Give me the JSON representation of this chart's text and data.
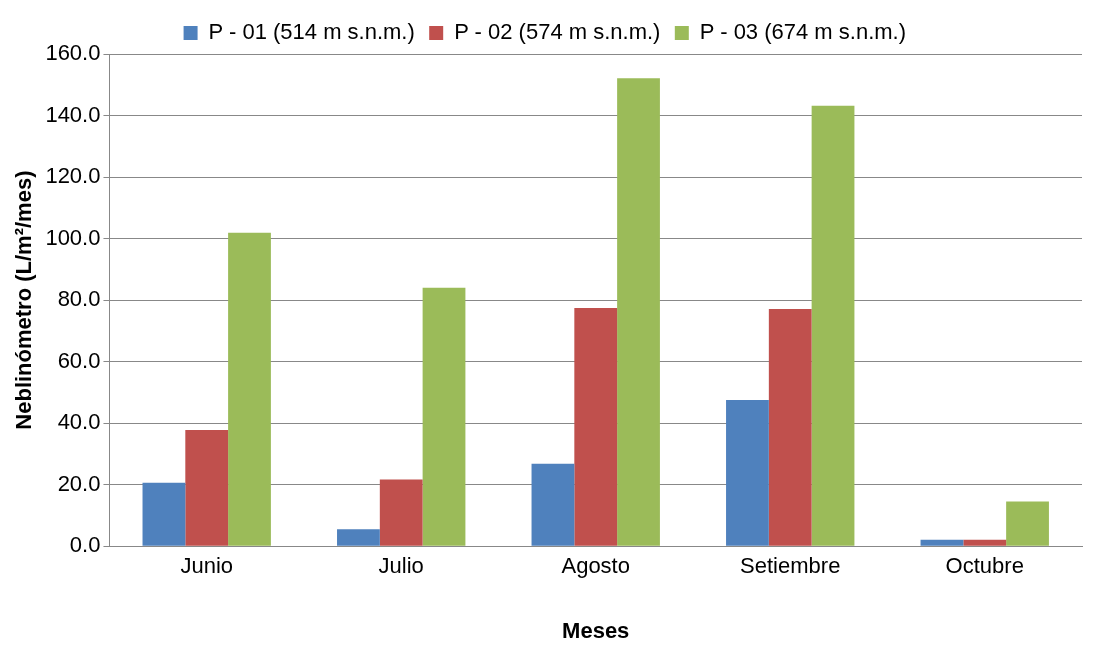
{
  "chart_data": {
    "type": "bar",
    "xlabel": "Meses",
    "ylabel": "Neblinómetro (L/m²/mes)",
    "categories": [
      "Junio",
      "Julio",
      "Agosto",
      "Setiembre",
      "Octubre"
    ],
    "series": [
      {
        "name": "P - 01 (514 m s.n.m.)",
        "color": "#4f81bd",
        "values": [
          20.6,
          5.5,
          26.8,
          47.5,
          2.1
        ]
      },
      {
        "name": "P - 02 (574 m s.n.m.)",
        "color": "#c0504d",
        "values": [
          37.8,
          21.7,
          77.4,
          77.1,
          2.1
        ]
      },
      {
        "name": "P - 03 (674 m s.n.m.)",
        "color": "#9bbb59",
        "values": [
          101.9,
          84.0,
          152.1,
          143.2,
          14.5
        ]
      }
    ],
    "ylim": [
      0,
      160
    ],
    "yticks": [
      {
        "value": 0,
        "label": "0.0"
      },
      {
        "value": 20,
        "label": "20.0"
      },
      {
        "value": 40,
        "label": "40.0"
      },
      {
        "value": 60,
        "label": "60.0"
      },
      {
        "value": 80,
        "label": "80.0"
      },
      {
        "value": 100,
        "label": "100.0"
      },
      {
        "value": 120,
        "label": "120.0"
      },
      {
        "value": 140,
        "label": "140.0"
      },
      {
        "value": 160,
        "label": "160.0"
      }
    ],
    "grid": "y",
    "legend": "top"
  }
}
